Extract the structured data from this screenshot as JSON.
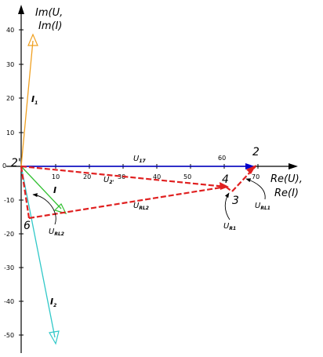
{
  "axes": {
    "y_label_line1": "Im(U,",
    "y_label_line2": "Im(I)",
    "x_label_line1": "Re(U),",
    "x_label_line2": "Re(I)",
    "x_ticks": [
      "10",
      "20",
      "30",
      "40",
      "50",
      "60",
      "70"
    ],
    "y_ticks": [
      "40",
      "30",
      "20",
      "10",
      "0",
      "-10",
      "-20",
      "-30",
      "-40",
      "-50"
    ]
  },
  "nodes": {
    "n2_top": "2",
    "n2_origin": "2'",
    "n3": "3",
    "n4": "4",
    "n6": "6"
  },
  "vectors": {
    "u17": {
      "main": "U",
      "sub": "17"
    },
    "u2": {
      "main": "U",
      "sub": "2'"
    },
    "ul2": {
      "main": "U",
      "sub": "RL2"
    },
    "ur1": {
      "main": "U",
      "sub": "R1"
    },
    "ul1": {
      "main": "U",
      "sub": "RL1"
    },
    "url2": {
      "main": "U",
      "sub": "RL2"
    }
  },
  "currents": {
    "i1": {
      "main": "I",
      "sub": "1"
    },
    "i": {
      "main": "I",
      "sub": ""
    },
    "i2": {
      "main": "I",
      "sub": "2"
    }
  },
  "colors": {
    "axis": "#000000",
    "real_voltage": "#0000cc",
    "dashed_voltage": "#e02020",
    "i1": "#f0a020",
    "i": "#30c030",
    "i2": "#30c8c8"
  }
}
